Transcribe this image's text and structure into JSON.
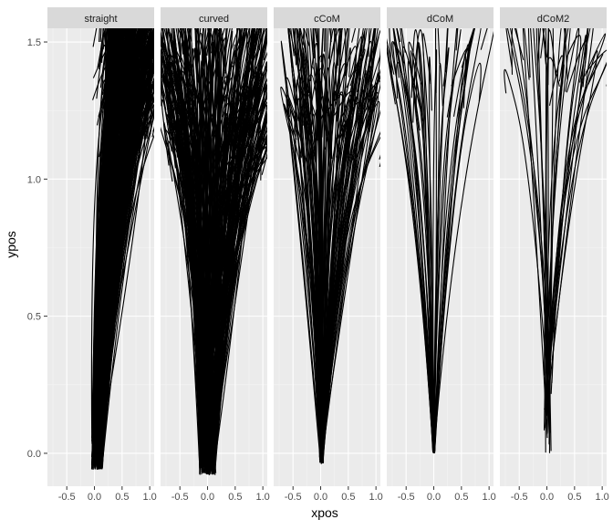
{
  "chart_data": {
    "type": "line",
    "title": "",
    "xlabel": "xpos",
    "ylabel": "ypos",
    "xlim": [
      -0.85,
      1.08
    ],
    "ylim": [
      -0.12,
      1.55
    ],
    "x_ticks": [
      -0.5,
      0.0,
      0.5,
      1.0
    ],
    "x_tick_labels": [
      "-0.5",
      "0.0",
      "0.5",
      "1.0"
    ],
    "y_ticks": [
      0.0,
      0.5,
      1.0,
      1.5
    ],
    "y_tick_labels": [
      "0.0",
      "0.5",
      "1.0",
      "1.5"
    ],
    "grid": true,
    "legend": "none",
    "facets": [
      {
        "label": "straight",
        "trajectory_bundle": {
          "start_x": [
            -0.05,
            0.15
          ],
          "start_y": [
            -0.06,
            0.1
          ],
          "end_x": [
            0.2,
            1.0
          ],
          "end_y": [
            1.1,
            1.48
          ],
          "mid_spread": 0.3,
          "count": 320
        }
      },
      {
        "label": "curved",
        "trajectory_bundle": {
          "start_x": [
            -0.15,
            0.15
          ],
          "start_y": [
            -0.08,
            0.0
          ],
          "end_x": [
            -0.7,
            1.0
          ],
          "end_y": [
            1.0,
            1.47
          ],
          "mid_spread": 0.25,
          "count": 260
        }
      },
      {
        "label": "cCoM",
        "trajectory_bundle": {
          "start_x": [
            -0.02,
            0.05
          ],
          "start_y": [
            -0.04,
            0.02
          ],
          "end_x": [
            -0.55,
            0.95
          ],
          "end_y": [
            1.05,
            1.45
          ],
          "mid_spread": 0.18,
          "count": 120
        }
      },
      {
        "label": "dCoM",
        "trajectory_bundle": {
          "start_x": [
            -0.02,
            0.02
          ],
          "start_y": [
            0.0,
            0.01
          ],
          "end_x": [
            -0.75,
            0.95
          ],
          "end_y": [
            1.2,
            1.45
          ],
          "mid_spread": 0.12,
          "count": 36
        }
      },
      {
        "label": "dCoM2",
        "trajectory_bundle": {
          "start_x": [
            -0.05,
            0.1
          ],
          "start_y": [
            -0.02,
            0.35
          ],
          "end_x": [
            -0.6,
            1.0
          ],
          "end_y": [
            1.25,
            1.43
          ],
          "mid_spread": 0.08,
          "count": 30
        }
      }
    ]
  },
  "colors": {
    "panel_bg": "#ebebeb",
    "grid_major": "#ffffff",
    "strip_bg": "#d9d9d9",
    "line": "#000000",
    "text": "#4d4d4d",
    "axis_title": "#000000"
  }
}
